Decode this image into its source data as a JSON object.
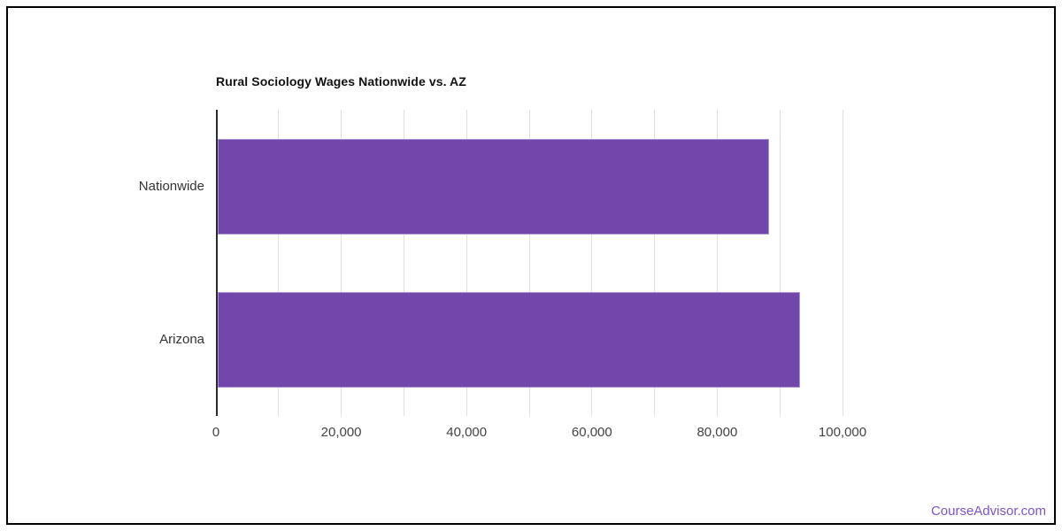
{
  "page": {
    "background_color": "#ffffff",
    "frame_border_color": "#000000"
  },
  "watermark": {
    "text": "CourseAdvisor.com",
    "color": "#7c53c9"
  },
  "chart_data": {
    "type": "bar",
    "orientation": "horizontal",
    "title": "Rural Sociology Wages Nationwide vs. AZ",
    "title_color": "#111111",
    "categories": [
      "Nationwide",
      "Arizona"
    ],
    "values": [
      88000,
      92900
    ],
    "xlabel": "",
    "ylabel": "",
    "xlim": [
      0,
      100000
    ],
    "xticks": [
      {
        "value": 0,
        "label": "0"
      },
      {
        "value": 20000,
        "label": "20,000"
      },
      {
        "value": 40000,
        "label": "40,000"
      },
      {
        "value": 60000,
        "label": "60,000"
      },
      {
        "value": 80000,
        "label": "80,000"
      },
      {
        "value": 100000,
        "label": "100,000"
      }
    ],
    "minor_gridline_step": 10000,
    "grid": true,
    "legend": false,
    "bar_color": "#7147ab",
    "bar_border_color": "#ab93d8",
    "gridline_color": "#e0e0e0",
    "axis_line_color": "#2b2b2b",
    "category_label_color": "#333333",
    "tick_label_color": "#444444"
  }
}
